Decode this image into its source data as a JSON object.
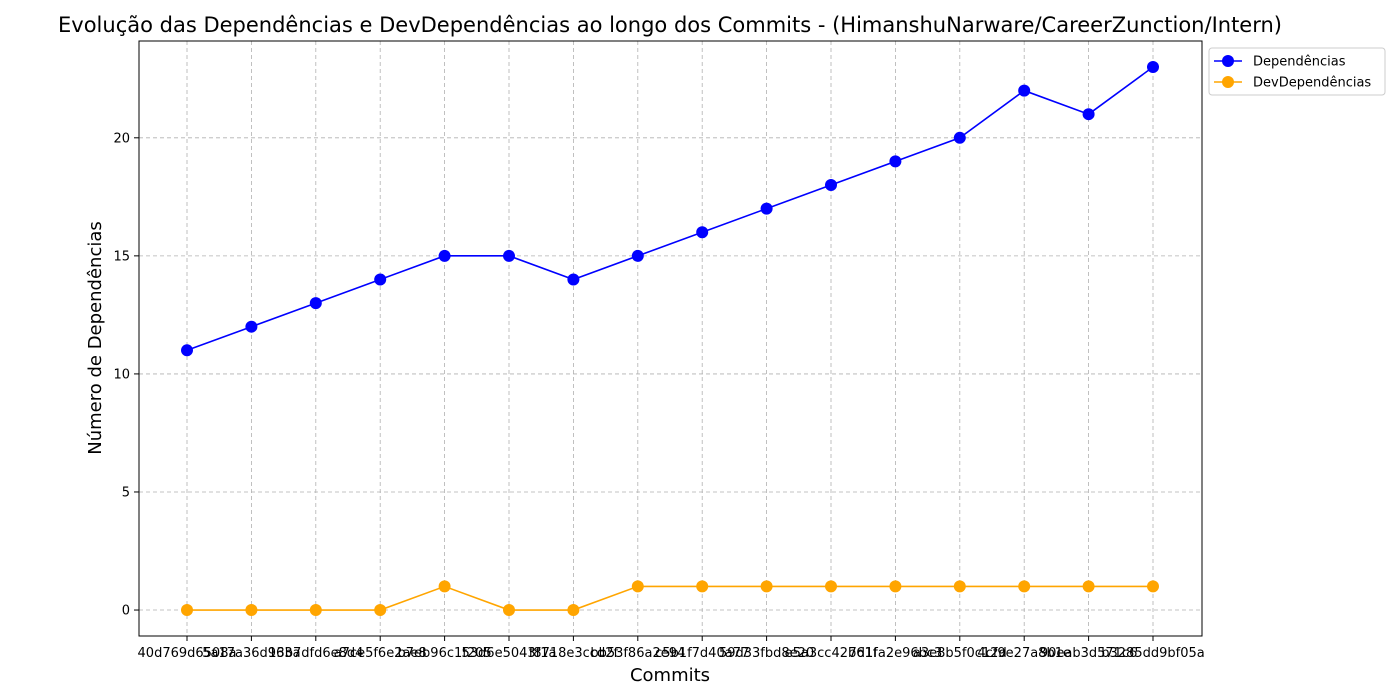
{
  "chart_data": {
    "type": "line",
    "title": "Evolução das Dependências e DevDependências ao longo dos Commits - (HimanshuNarware/CareerZunction/Intern)",
    "xlabel": "Commits",
    "ylabel": "Número de Dependências",
    "ylim": [
      -1.1,
      24.1
    ],
    "yticks": [
      0,
      5,
      10,
      15,
      20
    ],
    "grid": true,
    "legend_position": "top-right-outside",
    "categories": [
      "40d769d6508a",
      "5a17a36d963a",
      "13b7dfd6e8d4",
      "a7ce5f6e2ae8",
      "b7eb96c1f205",
      "53d6e5043f1a",
      "f8718e3ccd2f",
      "bb53f86a2e94",
      "c5b1f7d40a77",
      "59d33fbd8e20",
      "e5a3cc42b61f",
      "7d1fa2e96bc3",
      "a3e8b5f0c12d",
      "4cf9e27a8b1e",
      "90eab3d571c6",
      "b3285dd9bf05a"
    ],
    "series": [
      {
        "name": "Dependências",
        "color": "#0000ff",
        "values": [
          11,
          12,
          13,
          14,
          15,
          15,
          14,
          15,
          16,
          17,
          18,
          19,
          20,
          22,
          21,
          23
        ]
      },
      {
        "name": "DevDependências",
        "color": "#ffa500",
        "values": [
          0,
          0,
          0,
          0,
          1,
          0,
          0,
          1,
          1,
          1,
          1,
          1,
          1,
          1,
          1,
          1
        ]
      }
    ]
  }
}
